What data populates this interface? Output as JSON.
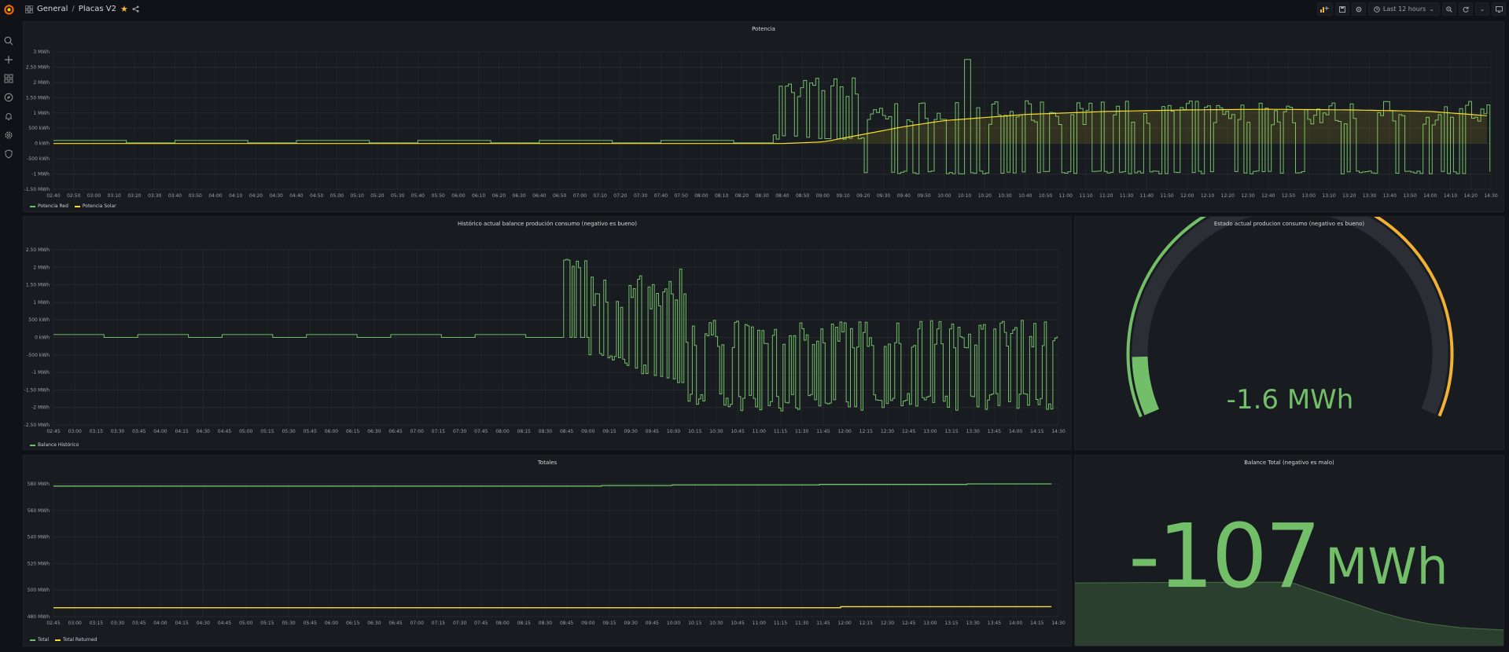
{
  "header": {
    "folder": "General",
    "separator": "/",
    "dashboard": "Placas V2",
    "time_range": "Last 12 hours"
  },
  "sidebar": {
    "items": [
      "search-icon",
      "plus-icon",
      "dashboards-icon",
      "explore-icon",
      "alerting-icon",
      "settings-icon",
      "shield-icon"
    ]
  },
  "colors": {
    "green": "#73bf69",
    "yellow": "#fade2a",
    "gauge_yellow": "#f2b134",
    "background": "#111217",
    "panel": "#181b1f"
  },
  "panels": {
    "potencia": {
      "title": "Potencia",
      "legend": [
        "Potencia Red",
        "Potencia Solar"
      ]
    },
    "historico": {
      "title": "Histórico actual balance produción consumo (negativo es bueno)",
      "legend": [
        "Balance Histórico"
      ]
    },
    "estado": {
      "title": "Estado actual producion consumo (negativo es bueno)",
      "value": "-1.6 MWh"
    },
    "totales": {
      "title": "Totales",
      "legend": [
        "Total",
        "Total Returned"
      ]
    },
    "balance": {
      "title": "Balance Total (negativo es malo)",
      "value": "-107",
      "unit": "MWh"
    }
  },
  "chart_data": [
    {
      "type": "line",
      "title": "Potencia",
      "y_ticks": [
        "3 MWh",
        "2.50 MWh",
        "2 MWh",
        "1.50 MWh",
        "1 MWh",
        "500 kWh",
        "0 kWh",
        "-500 kWh",
        "-1 MWh",
        "-1.50 MWh"
      ],
      "ylim": [
        -1.5,
        3
      ],
      "x_ticks": [
        "02:40",
        "02:50",
        "03:00",
        "03:10",
        "03:20",
        "03:30",
        "03:40",
        "03:50",
        "04:00",
        "04:10",
        "04:20",
        "04:30",
        "04:40",
        "04:50",
        "05:00",
        "05:10",
        "05:20",
        "05:30",
        "05:40",
        "05:50",
        "06:00",
        "06:10",
        "06:20",
        "06:30",
        "06:40",
        "06:50",
        "07:00",
        "07:10",
        "07:20",
        "07:30",
        "07:40",
        "07:50",
        "08:00",
        "08:10",
        "08:20",
        "08:30",
        "08:40",
        "08:50",
        "09:00",
        "09:10",
        "09:20",
        "09:30",
        "09:40",
        "09:50",
        "10:00",
        "10:10",
        "10:20",
        "10:30",
        "10:40",
        "10:50",
        "11:00",
        "11:10",
        "11:20",
        "11:30",
        "11:40",
        "11:50",
        "12:00",
        "12:10",
        "12:20",
        "12:30",
        "12:40",
        "12:50",
        "13:00",
        "13:10",
        "13:20",
        "13:30",
        "13:40",
        "13:50",
        "14:00",
        "14:10",
        "14:20",
        "14:30"
      ],
      "series": [
        {
          "name": "Potencia Red",
          "color": "#73bf69"
        },
        {
          "name": "Potencia Solar",
          "color": "#fade2a",
          "x": [
            "02:40",
            "08:40",
            "09:00",
            "09:20",
            "09:40",
            "10:00",
            "10:40",
            "11:20",
            "12:00",
            "12:40",
            "13:20",
            "14:00",
            "14:30"
          ],
          "values": [
            0,
            0,
            0.05,
            0.3,
            0.55,
            0.75,
            0.95,
            1.05,
            1.1,
            1.12,
            1.1,
            1.05,
            0.9
          ]
        }
      ]
    },
    {
      "type": "line",
      "title": "Histórico actual balance produción consumo (negativo es bueno)",
      "y_ticks": [
        "2.50 MWh",
        "2 MWh",
        "1.50 MWh",
        "1 MWh",
        "500 kWh",
        "0 kWh",
        "-500 kWh",
        "-1 MWh",
        "-1.50 MWh",
        "-2 MWh",
        "-2.50 MWh"
      ],
      "ylim": [
        -2.5,
        2.5
      ],
      "x_ticks": [
        "02:45",
        "03:00",
        "03:15",
        "03:30",
        "03:45",
        "04:00",
        "04:15",
        "04:30",
        "04:45",
        "05:00",
        "05:15",
        "05:30",
        "05:45",
        "06:00",
        "06:15",
        "06:30",
        "06:45",
        "07:00",
        "07:15",
        "07:30",
        "07:45",
        "08:00",
        "08:15",
        "08:30",
        "08:45",
        "09:00",
        "09:15",
        "09:30",
        "09:45",
        "10:00",
        "10:15",
        "10:30",
        "10:45",
        "11:00",
        "11:15",
        "11:30",
        "11:45",
        "12:00",
        "12:15",
        "12:30",
        "12:45",
        "13:00",
        "13:15",
        "13:30",
        "13:45",
        "14:00",
        "14:15",
        "14:30"
      ],
      "series": [
        {
          "name": "Balance Histórico",
          "color": "#73bf69"
        }
      ]
    },
    {
      "type": "line",
      "title": "Totales",
      "y_ticks": [
        "580 MWh",
        "560 MWh",
        "540 MWh",
        "520 MWh",
        "500 MWh",
        "480 MWh"
      ],
      "ylim": [
        470,
        590
      ],
      "x_ticks": [
        "02:45",
        "03:00",
        "03:15",
        "03:30",
        "03:45",
        "04:00",
        "04:15",
        "04:30",
        "04:45",
        "05:00",
        "05:15",
        "05:30",
        "05:45",
        "06:00",
        "06:15",
        "06:30",
        "06:45",
        "07:00",
        "07:15",
        "07:30",
        "07:45",
        "08:00",
        "08:15",
        "08:30",
        "08:45",
        "09:00",
        "09:15",
        "09:30",
        "09:45",
        "10:00",
        "10:15",
        "10:30",
        "10:45",
        "11:00",
        "11:15",
        "11:30",
        "11:45",
        "12:00",
        "12:15",
        "12:30",
        "12:45",
        "13:00",
        "13:15",
        "13:30",
        "13:45",
        "14:00",
        "14:15",
        "14:30"
      ],
      "series": [
        {
          "name": "Total",
          "color": "#73bf69",
          "x": [
            "02:40",
            "08:40",
            "09:10",
            "10:00",
            "11:45",
            "13:30",
            "14:30"
          ],
          "values": [
            588,
            588,
            588.5,
            589,
            589.5,
            590,
            590
          ]
        },
        {
          "name": "Total Returned",
          "color": "#fade2a",
          "x": [
            "02:40",
            "11:45",
            "12:00",
            "14:30"
          ],
          "values": [
            478,
            478,
            479,
            479
          ]
        }
      ]
    },
    {
      "type": "gauge",
      "title": "Estado actual producion consumo (negativo es bueno)",
      "value": -1.6,
      "unit": "MWh"
    }
  ]
}
